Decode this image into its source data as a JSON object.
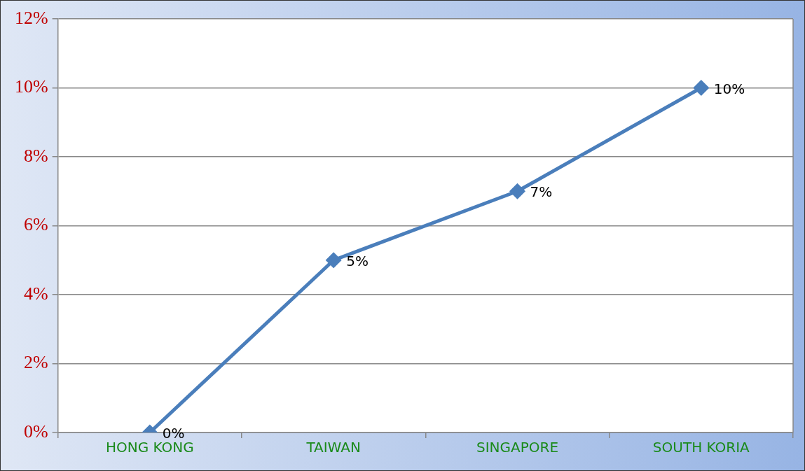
{
  "chart_data": {
    "type": "line",
    "categories": [
      "HONG KONG",
      "TAIWAN",
      "SINGAPORE",
      "SOUTH KORIA"
    ],
    "series": [
      {
        "color": "#4a7ebb",
        "values": [
          0,
          5,
          7,
          10
        ]
      }
    ],
    "value_labels": [
      "0%",
      "5%",
      "7%",
      "10%"
    ],
    "ylim": [
      0,
      12
    ],
    "yticks": [
      {
        "value": 0,
        "label": "0%"
      },
      {
        "value": 2,
        "label": "2%"
      },
      {
        "value": 4,
        "label": "4%"
      },
      {
        "value": 6,
        "label": "6%"
      },
      {
        "value": 8,
        "label": "8%"
      },
      {
        "value": 10,
        "label": "10%"
      },
      {
        "value": 12,
        "label": "12%"
      }
    ],
    "grid": "y",
    "legend": false,
    "marker": "diamond",
    "line_style": "solid"
  }
}
